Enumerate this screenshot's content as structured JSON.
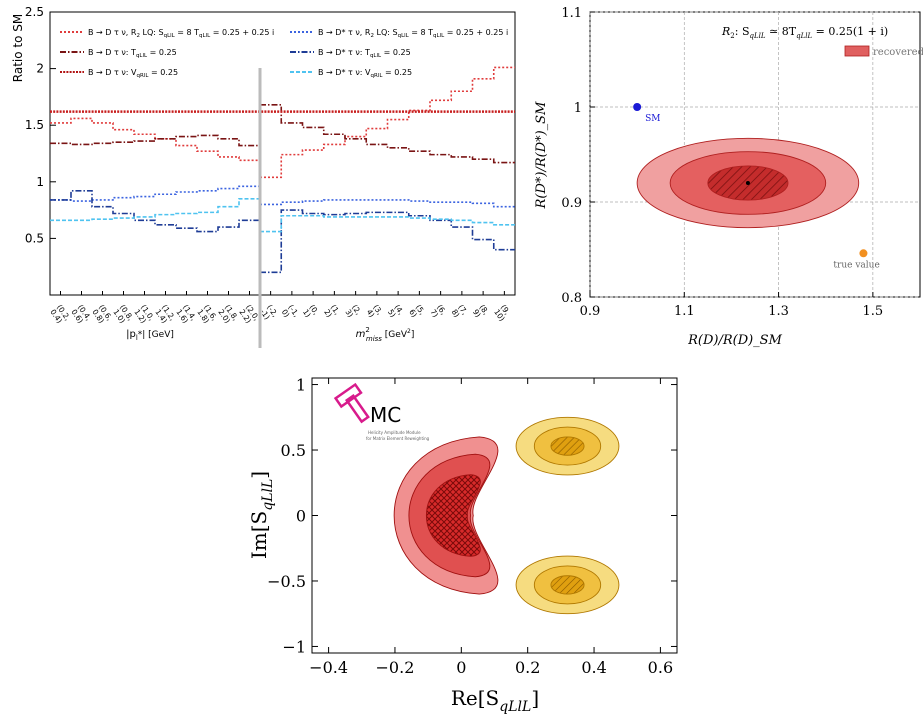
{
  "chart_data": [
    {
      "id": "ratio",
      "type": "line",
      "ylabel": "Ratio to SM",
      "ylim": [
        0,
        2.5
      ],
      "yticks": [
        0.5,
        1,
        1.5,
        2,
        2.5
      ],
      "left_panel": {
        "xlabel_main": "|p",
        "xlabel_sub": "l",
        "xlabel_tail": "*| [GeV]",
        "bins": [
          "(0.2, 0.4)",
          "(0.4, 0.6)",
          "(0.6, 0.8)",
          "(0.8, 1.0)",
          "(1.0, 1.2)",
          "(1.2, 1.4)",
          "(1.4, 1.6)",
          "(1.6, 1.8)",
          "(1.8, 2.0)",
          "(2.0, 2.2)"
        ]
      },
      "right_panel": {
        "xlabel_main": "m",
        "xlabel_sup": "2",
        "xlabel_sub": "miss",
        "xlabel_tail": " [GeV",
        "xlabel_tail_sup": "2",
        "xlabel_close": "]",
        "bins": [
          "(-2, -1)",
          "(-1, 0)",
          "(0, 1)",
          "(1, 2)",
          "(2, 3)",
          "(3, 4)",
          "(4, 5)",
          "(5, 6)",
          "(6, 7)",
          "(7, 8)",
          "(8, 9)",
          "(9, 10)"
        ]
      },
      "legend": {
        "placement": "top",
        "entries": [
          {
            "text": "B → D τ ν, R",
            "sub": "2",
            "rest": " LQ: S",
            "sub2": "qLlL",
            "rest2": " = 8 T",
            "sub3": "qLlL",
            "rest3": " = 0.25 + 0.25 i",
            "color": "#e03c3c",
            "style": "dot"
          },
          {
            "text": "B → D τ ν: T",
            "sub": "qLlL",
            "rest": " = 0.25",
            "color": "#7a1414",
            "style": "dashdot"
          },
          {
            "text": "B → D τ ν: V",
            "sub": "qRlL",
            "rest": " = 0.25",
            "color": "#b11414",
            "style": "densedot"
          },
          {
            "text": "B → D* τ ν, R",
            "sub": "2",
            "rest": " LQ: S",
            "sub2": "qLlL",
            "rest2": " = 8 T",
            "sub3": "qLlL",
            "rest3": " = 0.25 + 0.25 i",
            "color": "#3c64e0",
            "style": "dot"
          },
          {
            "text": "B → D* τ ν: T",
            "sub": "qLlL",
            "rest": " = 0.25",
            "color": "#1e3c96",
            "style": "dashdot"
          },
          {
            "text": "B → D* τ ν: V",
            "sub": "qRlL",
            "rest": " = 0.25",
            "color": "#4fc3f0",
            "style": "dash"
          }
        ]
      },
      "series": [
        {
          "panel": "left",
          "color": "#e03c3c",
          "style": "dot",
          "values": [
            1.52,
            1.56,
            1.52,
            1.46,
            1.42,
            1.38,
            1.32,
            1.27,
            1.22,
            1.19
          ]
        },
        {
          "panel": "left",
          "color": "#7a1414",
          "style": "dashdot",
          "values": [
            1.34,
            1.33,
            1.34,
            1.35,
            1.36,
            1.38,
            1.4,
            1.41,
            1.38,
            1.32
          ]
        },
        {
          "panel": "left",
          "color": "#3c64e0",
          "style": "dot",
          "values": [
            0.84,
            0.83,
            0.84,
            0.86,
            0.87,
            0.89,
            0.91,
            0.92,
            0.94,
            0.96
          ]
        },
        {
          "panel": "left",
          "color": "#1e3c96",
          "style": "dashdot",
          "values": [
            0.84,
            0.92,
            0.78,
            0.72,
            0.66,
            0.62,
            0.59,
            0.56,
            0.6,
            0.66
          ]
        },
        {
          "panel": "left",
          "color": "#4fc3f0",
          "style": "dash",
          "values": [
            0.66,
            0.66,
            0.67,
            0.68,
            0.69,
            0.71,
            0.72,
            0.73,
            0.78,
            0.85
          ]
        },
        {
          "panel": "right",
          "color": "#e03c3c",
          "style": "dot",
          "values": [
            1.04,
            1.24,
            1.28,
            1.33,
            1.4,
            1.47,
            1.55,
            1.63,
            1.72,
            1.8,
            1.91,
            2.01
          ]
        },
        {
          "panel": "right",
          "color": "#7a1414",
          "style": "dashdot",
          "values": [
            1.68,
            1.52,
            1.48,
            1.42,
            1.38,
            1.33,
            1.3,
            1.27,
            1.24,
            1.22,
            1.2,
            1.17
          ]
        },
        {
          "panel": "right",
          "color": "#3c64e0",
          "style": "dot",
          "values": [
            0.8,
            0.82,
            0.83,
            0.84,
            0.84,
            0.84,
            0.84,
            0.83,
            0.82,
            0.82,
            0.81,
            0.78
          ]
        },
        {
          "panel": "right",
          "color": "#1e3c96",
          "style": "dashdot",
          "values": [
            0.2,
            0.75,
            0.72,
            0.71,
            0.72,
            0.73,
            0.73,
            0.7,
            0.66,
            0.6,
            0.49,
            0.4
          ]
        },
        {
          "panel": "right",
          "color": "#4fc3f0",
          "style": "dash",
          "values": [
            0.56,
            0.7,
            0.7,
            0.69,
            0.69,
            0.69,
            0.69,
            0.68,
            0.67,
            0.66,
            0.64,
            0.62
          ]
        },
        {
          "panel": "both",
          "color": "#c81e1e",
          "style": "densedot",
          "values": [
            1.62
          ]
        }
      ]
    },
    {
      "id": "rd-rdstar",
      "type": "scatter",
      "xlabel": "R(D)/R(D)_SM",
      "ylabel": "R(D*)/R(D*)_SM",
      "xlim": [
        0.9,
        1.6
      ],
      "ylim": [
        0.8,
        1.1
      ],
      "xticks": [
        "0.9",
        "1.1",
        "1.3",
        "1.5"
      ],
      "xtick_values": [
        0.9,
        1.1,
        1.3,
        1.5
      ],
      "yticks": [
        "0.8",
        "0.9",
        "1",
        "1.1"
      ],
      "ytick_values": [
        0.8,
        0.9,
        1.0,
        1.1
      ],
      "grid": true,
      "title_prefix": "R",
      "title_sub": "2",
      "title_body": ":  S",
      "title_sub2": "qLlL",
      "title_mid": " ≃ 8T",
      "title_sub3": "qLlL",
      "title_end": " = 0.25(1 + i)",
      "legend": [
        {
          "label": "recovered",
          "color": "#e06060"
        }
      ],
      "points": [
        {
          "label": "SM",
          "x": 1.0,
          "y": 1.0,
          "color": "#1a1ad6"
        },
        {
          "label": "true value",
          "x": 1.48,
          "y": 0.846,
          "color": "#f29020"
        },
        {
          "label": "",
          "x": 1.235,
          "y": 0.92,
          "color": "#000000"
        }
      ],
      "ellipses": [
        {
          "cx": 1.235,
          "cy": 0.92,
          "rx": 0.235,
          "ry": 0.047,
          "color": "#f0a0a0"
        },
        {
          "cx": 1.235,
          "cy": 0.92,
          "rx": 0.165,
          "ry": 0.033,
          "color": "#e46060"
        },
        {
          "cx": 1.235,
          "cy": 0.92,
          "rx": 0.085,
          "ry": 0.018,
          "color": "#c42c2c",
          "hatched": true
        }
      ]
    },
    {
      "id": "s-plane",
      "type": "scatter",
      "xlabel_main": "Re[S",
      "xlabel_sub": "qLlL",
      "xlabel_close": "]",
      "ylabel_main": "Im[S",
      "ylabel_sub": "qLlL",
      "ylabel_close": "]",
      "xlim": [
        -0.45,
        0.65
      ],
      "ylim": [
        -1.05,
        1.05
      ],
      "xticks": [
        "−0.4",
        "−0.2",
        "0",
        "0.2",
        "0.4",
        "0.6"
      ],
      "xtick_values": [
        -0.4,
        -0.2,
        0,
        0.2,
        0.4,
        0.6
      ],
      "yticks": [
        "−1",
        "−0.5",
        "0",
        "0.5",
        "1"
      ],
      "ytick_values": [
        -1,
        -0.5,
        0,
        0.5,
        1
      ],
      "logo": {
        "text": "MC",
        "sub1": "Helicity Amplitude Module",
        "sub2": "for Matrix Element Reweighting",
        "color": "#d81b8c"
      },
      "regions": [
        {
          "kind": "red",
          "cx": 0.0,
          "cy": 0.0,
          "level": 3
        },
        {
          "kind": "yellow",
          "cx": 0.32,
          "cy": 0.53,
          "level": 3
        },
        {
          "kind": "yellow",
          "cx": 0.32,
          "cy": -0.53,
          "level": 3
        }
      ]
    }
  ]
}
